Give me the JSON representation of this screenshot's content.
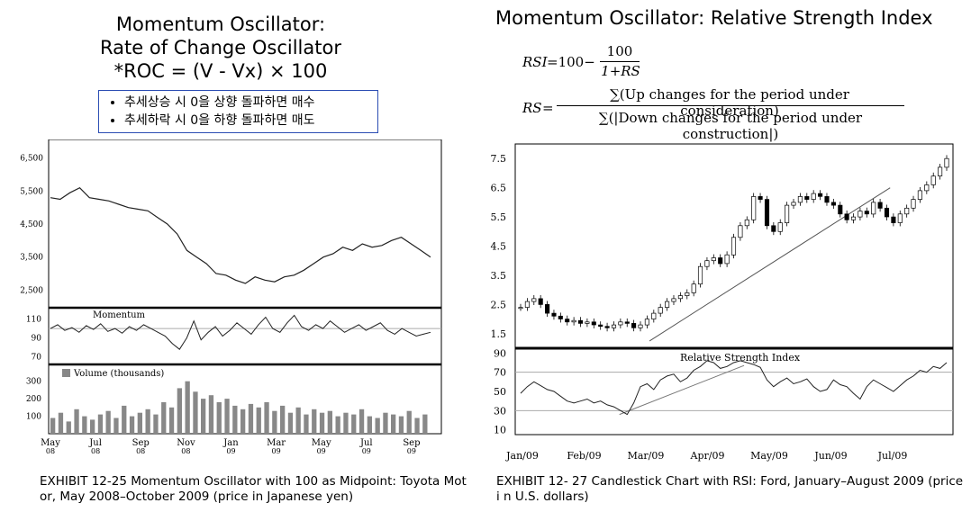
{
  "left": {
    "title_lines": [
      "Momentum Oscillator:",
      "Rate of Change Oscillator",
      "*ROC = (V  - Vx) × 100"
    ],
    "bullets": [
      "추세상승 시 0을 상향 돌파하면 매수",
      "추세하락 시 0을 하향 돌파하면 매도"
    ],
    "caption": "EXHIBIT 12-25 Momentum Oscillator with 100 as Midpoint: Toyota Mot or, May 2008–October 2009 (price in Japanese yen)"
  },
  "right": {
    "title": "Momentum Oscillator: Relative Strength Index",
    "formula_rsi_lhs": "RSI",
    "formula_rsi_eq": "=100−",
    "formula_rsi_num": "100",
    "formula_rsi_den": "1+RS",
    "formula_rs_lhs": "RS",
    "formula_rs_eq": "=",
    "formula_rs_num": "∑(Up changes for the period under consideration)",
    "formula_rs_den": "∑(|Down changes for the period under construction|)",
    "caption": "EXHIBIT 12- 27 Candlestick Chart with RSI: Ford, January–August 2009 (price i n U.S. dollars)"
  },
  "chart_data": [
    {
      "type": "line",
      "panel": "price",
      "yticks": [
        6500,
        5500,
        4500,
        3500,
        2500
      ],
      "ylim": [
        2100,
        6900
      ],
      "x": [
        0,
        3,
        6,
        9,
        12,
        15,
        18,
        21,
        24,
        27,
        30,
        33,
        36,
        39,
        42,
        45,
        48,
        51,
        54,
        57,
        60,
        63,
        66,
        69,
        72,
        75,
        78,
        81,
        84,
        87,
        90,
        93,
        96,
        99,
        102,
        105,
        108,
        111,
        114,
        117
      ],
      "values": [
        5300,
        5250,
        5450,
        5600,
        5300,
        5250,
        5200,
        5100,
        5000,
        4950,
        4900,
        4700,
        4500,
        4200,
        3700,
        3500,
        3300,
        3000,
        2950,
        2800,
        2700,
        2900,
        2800,
        2750,
        2900,
        2950,
        3100,
        3300,
        3500,
        3600,
        3800,
        3700,
        3900,
        3800,
        3850,
        4000,
        4100,
        3900,
        3700,
        3500
      ],
      "xlabels": [
        "May 08",
        "Jul 08",
        "Sep 08",
        "Nov 08",
        "Jan 09",
        "Mar 09",
        "May 09",
        "Jul 09",
        "Sep 09"
      ]
    },
    {
      "type": "line",
      "panel": "momentum",
      "title": "Momentum",
      "yticks": [
        110,
        90,
        70
      ],
      "ylim": [
        62,
        122
      ],
      "values": [
        100,
        104,
        98,
        101,
        96,
        103,
        99,
        105,
        97,
        100,
        95,
        102,
        98,
        104,
        100,
        96,
        92,
        84,
        78,
        90,
        108,
        88,
        96,
        102,
        92,
        98,
        106,
        100,
        94,
        104,
        112,
        100,
        96,
        106,
        114,
        102,
        98,
        104,
        100,
        108,
        102,
        96,
        100,
        104,
        98,
        102,
        106,
        98,
        94,
        100,
        96,
        92,
        94,
        96
      ]
    },
    {
      "type": "bar",
      "panel": "volume",
      "title": "Volume (thousands)",
      "yticks": [
        300,
        200,
        100
      ],
      "ylim": [
        0,
        360
      ],
      "values": [
        90,
        120,
        70,
        140,
        100,
        80,
        110,
        130,
        90,
        160,
        100,
        120,
        140,
        110,
        180,
        150,
        260,
        300,
        240,
        200,
        220,
        180,
        200,
        160,
        140,
        170,
        150,
        180,
        130,
        160,
        120,
        150,
        110,
        140,
        120,
        130,
        100,
        120,
        110,
        140,
        100,
        90,
        120,
        110,
        100,
        130,
        90,
        110
      ]
    },
    {
      "type": "candlestick",
      "panel": "price",
      "yticks": [
        7.5,
        6.5,
        5.5,
        4.5,
        3.5,
        2.5,
        1.5
      ],
      "ylim": [
        1.0,
        8.0
      ],
      "values": [
        2.4,
        2.6,
        2.7,
        2.5,
        2.2,
        2.1,
        2.0,
        1.9,
        1.95,
        1.85,
        1.9,
        1.8,
        1.75,
        1.7,
        1.8,
        1.9,
        1.85,
        1.7,
        1.8,
        2.0,
        2.2,
        2.4,
        2.6,
        2.7,
        2.8,
        2.9,
        3.2,
        3.8,
        4.0,
        4.1,
        3.9,
        4.2,
        4.8,
        5.2,
        5.4,
        6.2,
        6.1,
        5.2,
        5.0,
        5.3,
        5.9,
        6.0,
        6.2,
        6.1,
        6.3,
        6.2,
        6.0,
        5.9,
        5.6,
        5.4,
        5.5,
        5.7,
        5.6,
        6.0,
        5.8,
        5.5,
        5.3,
        5.6,
        5.8,
        6.1,
        6.4,
        6.6,
        6.9,
        7.2,
        7.5
      ],
      "trendlines": [
        {
          "from": [
            0.3,
            1.25
          ],
          "to": [
            0.86,
            6.5
          ]
        }
      ],
      "xlabels": [
        "Jan/09",
        "Feb/09",
        "Mar/09",
        "Apr/09",
        "May/09",
        "Jun/09",
        "Jul/09"
      ]
    },
    {
      "type": "line",
      "panel": "rsi",
      "title": "Relative Strength Index",
      "yticks": [
        90,
        70,
        50,
        30,
        10
      ],
      "ylim": [
        5,
        95
      ],
      "values": [
        48,
        55,
        60,
        56,
        52,
        50,
        45,
        40,
        38,
        40,
        42,
        38,
        40,
        36,
        34,
        30,
        26,
        38,
        55,
        58,
        52,
        62,
        66,
        68,
        60,
        64,
        72,
        76,
        82,
        80,
        74,
        76,
        80,
        82,
        80,
        78,
        75,
        62,
        55,
        60,
        64,
        58,
        60,
        63,
        55,
        50,
        52,
        62,
        57,
        55,
        48,
        42,
        55,
        62,
        58,
        54,
        50,
        56,
        62,
        66,
        72,
        70,
        76,
        74,
        80
      ]
    }
  ]
}
